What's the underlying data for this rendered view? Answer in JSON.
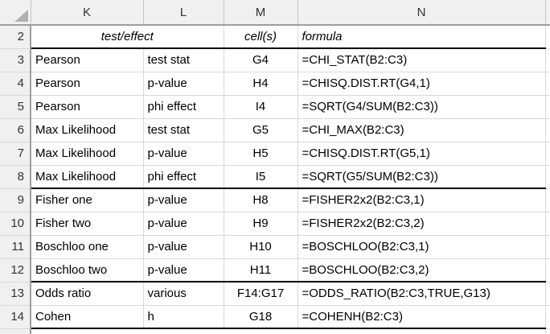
{
  "sheet": {
    "columns": [
      "K",
      "L",
      "M",
      "N"
    ],
    "header_row": {
      "row_number": "2",
      "test_effect": "test/effect",
      "cells_label": "cell(s)",
      "formula_label": "formula"
    },
    "rows": [
      {
        "row_number": "3",
        "test": "Pearson",
        "effect": "test stat",
        "cell": "G4",
        "formula": "=CHI_STAT(B2:C3)",
        "section_end": false
      },
      {
        "row_number": "4",
        "test": "Pearson",
        "effect": "p-value",
        "cell": "H4",
        "formula": "=CHISQ.DIST.RT(G4,1)",
        "section_end": false
      },
      {
        "row_number": "5",
        "test": "Pearson",
        "effect": "phi effect",
        "cell": "I4",
        "formula": "=SQRT(G4/SUM(B2:C3))",
        "section_end": false
      },
      {
        "row_number": "6",
        "test": "Max Likelihood",
        "effect": "test stat",
        "cell": "G5",
        "formula": "=CHI_MAX(B2:C3)",
        "section_end": false
      },
      {
        "row_number": "7",
        "test": "Max Likelihood",
        "effect": "p-value",
        "cell": "H5",
        "formula": "=CHISQ.DIST.RT(G5,1)",
        "section_end": false
      },
      {
        "row_number": "8",
        "test": "Max Likelihood",
        "effect": "phi effect",
        "cell": "I5",
        "formula": "=SQRT(G5/SUM(B2:C3))",
        "section_end": true
      },
      {
        "row_number": "9",
        "test": "Fisher one",
        "effect": "p-value",
        "cell": "H8",
        "formula": "=FISHER2x2(B2:C3,1)",
        "section_end": false
      },
      {
        "row_number": "10",
        "test": "Fisher two",
        "effect": "p-value",
        "cell": "H9",
        "formula": "=FISHER2x2(B2:C3,2)",
        "section_end": false
      },
      {
        "row_number": "11",
        "test": "Boschloo one",
        "effect": "p-value",
        "cell": "H10",
        "formula": "=BOSCHLOO(B2:C3,1)",
        "section_end": false
      },
      {
        "row_number": "12",
        "test": "Boschloo two",
        "effect": "p-value",
        "cell": "H11",
        "formula": "=BOSCHLOO(B2:C3,2)",
        "section_end": true
      },
      {
        "row_number": "13",
        "test": "Odds ratio",
        "effect": "various",
        "cell": "F14:G17",
        "formula": "=ODDS_RATIO(B2:C3,TRUE,G13)",
        "section_end": false
      },
      {
        "row_number": "14",
        "test": "Cohen",
        "effect": "h",
        "cell": "G18",
        "formula": "=COHENH(B2:C3)",
        "section_end": true
      }
    ],
    "colors": {
      "header_bg": "#f0f0f0",
      "gridline": "#d9d9d9",
      "header_strong_border": "#9e9e9e",
      "section_border": "#000000",
      "header_text": "#333333",
      "cell_text": "#000000",
      "select_all_triangle": "#b1b1b1"
    }
  }
}
